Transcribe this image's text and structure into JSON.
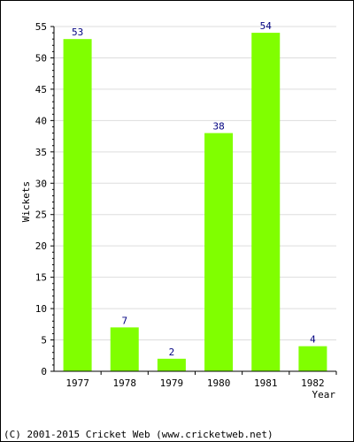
{
  "chart_data": {
    "type": "bar",
    "categories": [
      "1977",
      "1978",
      "1979",
      "1980",
      "1981",
      "1982"
    ],
    "values": [
      53,
      7,
      2,
      38,
      54,
      4
    ],
    "xlabel": "Year",
    "ylabel": "Wickets",
    "ylim": [
      0,
      55
    ],
    "yticks": [
      0,
      5,
      10,
      15,
      20,
      25,
      30,
      35,
      40,
      45,
      50,
      55
    ],
    "grid": true,
    "bar_color": "#80ff00",
    "value_label_color": "#000080",
    "gridline_color": "#dddddd"
  },
  "footer": {
    "copyright": "(C) 2001-2015 Cricket Web (www.cricketweb.net)"
  }
}
